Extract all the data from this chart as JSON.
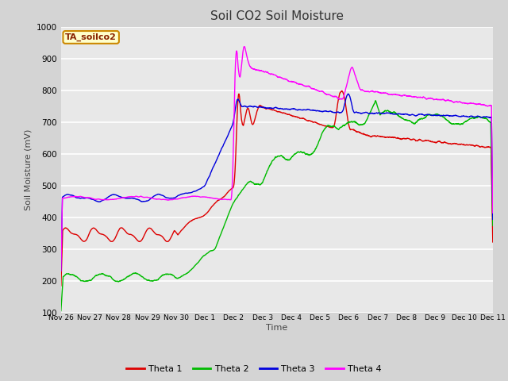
{
  "title": "Soil CO2 Soil Moisture",
  "xlabel": "Time",
  "ylabel": "Soil Moisture (mV)",
  "ylim": [
    100,
    1000
  ],
  "fig_bg": "#d4d4d4",
  "plot_bg": "#e8e8e8",
  "grid_color": "#ffffff",
  "label_box_text": "TA_soilco2",
  "label_box_facecolor": "#ffffcc",
  "label_box_edgecolor": "#cc8800",
  "label_text_color": "#882200",
  "colors": {
    "theta1": "#dd0000",
    "theta2": "#00bb00",
    "theta3": "#0000dd",
    "theta4": "#ff00ff"
  },
  "x_tick_labels": [
    "Nov 26",
    "Nov 27",
    "Nov 28",
    "Nov 29",
    "Nov 30",
    "Dec 1",
    "Dec 2",
    "Dec 3",
    "Dec 4",
    "Dec 5",
    "Dec 6",
    "Dec 7",
    "Dec 8",
    "Dec 9",
    "Dec 10",
    "Dec 11"
  ],
  "x_tick_positions": [
    0,
    1,
    2,
    3,
    4,
    5,
    6,
    7,
    8,
    9,
    10,
    11,
    12,
    13,
    14,
    15
  ],
  "yticks": [
    100,
    200,
    300,
    400,
    500,
    600,
    700,
    800,
    900,
    1000
  ]
}
